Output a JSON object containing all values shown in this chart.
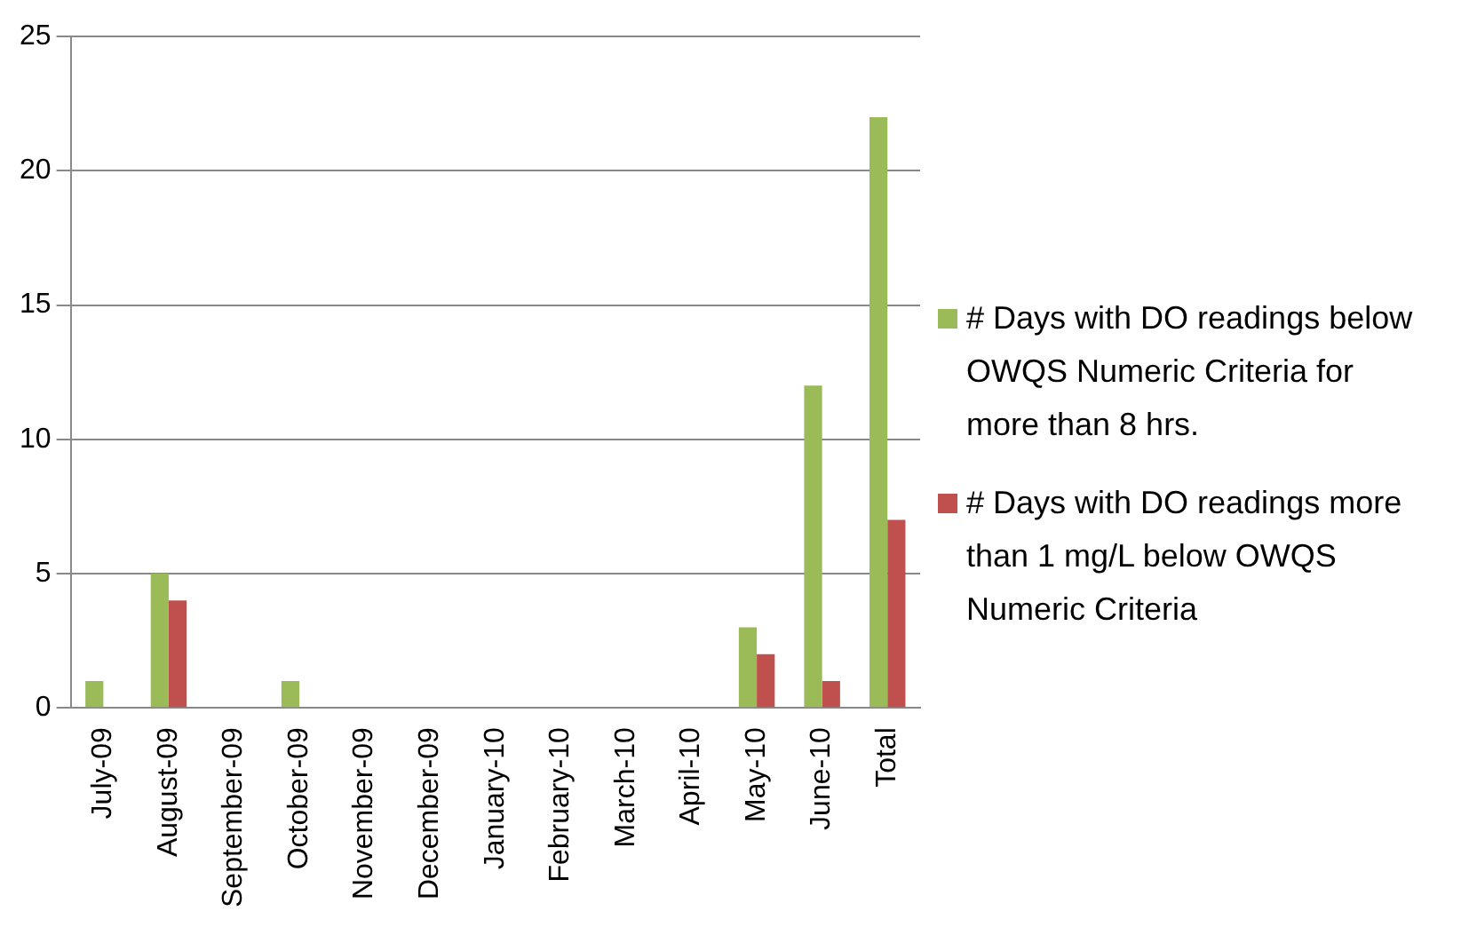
{
  "chart_data": {
    "type": "bar",
    "categories": [
      "July-09",
      "August-09",
      "September-09",
      "October-09",
      "November-09",
      "December-09",
      "January-10",
      "February-10",
      "March-10",
      "April-10",
      "May-10",
      "June-10",
      "Total"
    ],
    "series": [
      {
        "name": "# Days with DO readings below OWQS Numeric Criteria for more than 8 hrs.",
        "color": "#9bbb59",
        "values": [
          1,
          5,
          0,
          1,
          0,
          0,
          0,
          0,
          0,
          0,
          3,
          12,
          22
        ]
      },
      {
        "name": "# Days with DO readings more than 1 mg/L below OWQS Numeric Criteria",
        "color": "#c0504d",
        "values": [
          0,
          4,
          0,
          0,
          0,
          0,
          0,
          0,
          0,
          0,
          2,
          1,
          7
        ]
      }
    ],
    "ylim": [
      0,
      25
    ],
    "yticks": [
      0,
      5,
      10,
      15,
      20,
      25
    ],
    "grid": "y",
    "legend": "right"
  }
}
